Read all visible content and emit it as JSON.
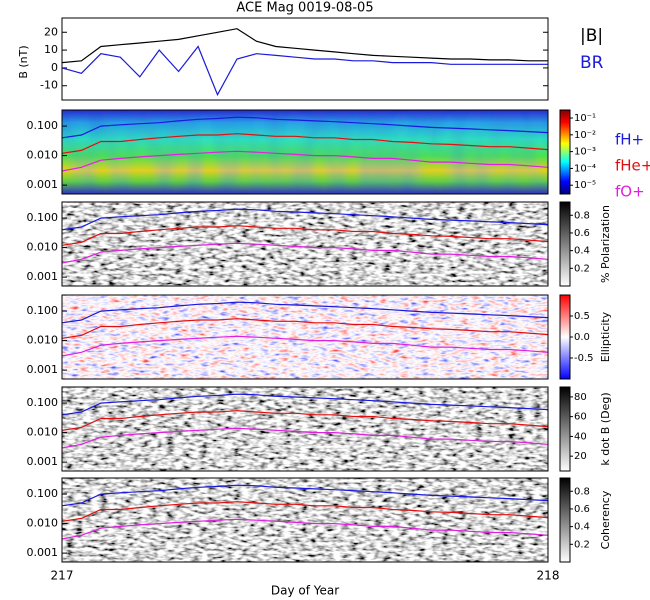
{
  "chart_data": [
    {
      "type": "line",
      "title": "ACE Mag 0019-08-05",
      "y_label": "B (nT)",
      "x": [
        217.0,
        217.04,
        217.08,
        217.12,
        217.16,
        217.2,
        217.24,
        217.28,
        217.32,
        217.36,
        217.4,
        217.44,
        217.48,
        217.52,
        217.56,
        217.6,
        217.64,
        217.68,
        217.72,
        217.76,
        217.8,
        217.84,
        217.88,
        217.92,
        217.96,
        218.0
      ],
      "xlim": [
        217,
        218
      ],
      "ylim": [
        -18,
        28
      ],
      "yticks": [
        -10,
        0,
        10,
        20
      ],
      "series": [
        {
          "name": "|B|",
          "color": "#000000",
          "values": [
            3,
            4,
            12,
            13,
            14,
            15,
            16,
            18,
            20,
            22,
            15,
            12,
            11,
            10,
            9,
            8,
            7,
            6.5,
            6,
            5.5,
            5,
            5,
            4.5,
            4.5,
            4,
            4
          ]
        },
        {
          "name": "BR",
          "color": "#1a1adc",
          "values": [
            0,
            -3,
            8,
            6,
            -5,
            10,
            -2,
            12,
            -15,
            5,
            8,
            7,
            6,
            5,
            5,
            4,
            4,
            3,
            3,
            3,
            2,
            2,
            2,
            2,
            2,
            2
          ]
        }
      ]
    },
    {
      "type": "spectrogram",
      "x_label": "Day of Year",
      "log_y": true,
      "x": [
        217.0,
        217.04,
        217.08,
        217.12,
        217.16,
        217.2,
        217.24,
        217.28,
        217.32,
        217.36,
        217.4,
        217.44,
        217.48,
        217.52,
        217.56,
        217.6,
        217.64,
        217.68,
        217.72,
        217.76,
        217.8,
        217.84,
        217.88,
        217.92,
        217.96,
        218.0
      ],
      "xlim": [
        217,
        218
      ],
      "xticks": [
        217,
        218
      ],
      "ylim": [
        0.0005,
        0.35
      ],
      "yticks": [
        {
          "value": 0.001,
          "label": "0.001"
        },
        {
          "value": 0.01,
          "label": "0.010"
        },
        {
          "value": 0.1,
          "label": "0.100"
        }
      ],
      "series": [
        {
          "name": "fH+",
          "color": "#1a1adc",
          "values": [
            0.04,
            0.05,
            0.1,
            0.11,
            0.12,
            0.13,
            0.15,
            0.17,
            0.18,
            0.2,
            0.19,
            0.17,
            0.16,
            0.15,
            0.14,
            0.13,
            0.12,
            0.11,
            0.1,
            0.09,
            0.085,
            0.08,
            0.075,
            0.07,
            0.065,
            0.06
          ]
        },
        {
          "name": "fHe+",
          "color": "#e01010",
          "values": [
            0.012,
            0.015,
            0.03,
            0.03,
            0.035,
            0.04,
            0.045,
            0.05,
            0.05,
            0.055,
            0.05,
            0.045,
            0.045,
            0.04,
            0.04,
            0.035,
            0.035,
            0.03,
            0.028,
            0.025,
            0.024,
            0.022,
            0.02,
            0.02,
            0.018,
            0.016
          ]
        },
        {
          "name": "fO+",
          "color": "#e020e0",
          "values": [
            0.003,
            0.004,
            0.007,
            0.008,
            0.009,
            0.01,
            0.011,
            0.012,
            0.013,
            0.014,
            0.013,
            0.012,
            0.011,
            0.01,
            0.01,
            0.009,
            0.008,
            0.008,
            0.007,
            0.006,
            0.006,
            0.0055,
            0.005,
            0.005,
            0.0045,
            0.004
          ]
        }
      ],
      "panels": [
        {
          "colormap": "jet",
          "clog": true,
          "clim": [
            3e-06,
            0.3
          ],
          "cticks": [
            {
              "value": 1e-05,
              "label": "10⁻⁵"
            },
            {
              "value": 0.0001,
              "label": "10⁻⁴"
            },
            {
              "value": 0.001,
              "label": "10⁻³"
            },
            {
              "value": 0.01,
              "label": "10⁻²"
            },
            {
              "value": 0.1,
              "label": "10⁻¹"
            }
          ]
        },
        {
          "colormap": "gray",
          "colorbar_label": "% Polarization",
          "clim": [
            0,
            0.95
          ],
          "cticks": [
            0.2,
            0.4,
            0.6,
            0.8
          ]
        },
        {
          "colormap": "bwr",
          "colorbar_label": "Ellipticity",
          "clim": [
            -1,
            1
          ],
          "cticks": [
            -0.5,
            {
              "value": 0,
              "label": "0.0"
            },
            0.5
          ]
        },
        {
          "colormap": "gray",
          "colorbar_label": "k dot B (Deg)",
          "clim": [
            5,
            90
          ],
          "cticks": [
            20,
            40,
            60,
            80
          ]
        },
        {
          "colormap": "gray",
          "colorbar_label": "Coherency",
          "clim": [
            0,
            0.95
          ],
          "cticks": [
            0.2,
            0.4,
            0.6,
            0.8
          ]
        }
      ]
    }
  ]
}
